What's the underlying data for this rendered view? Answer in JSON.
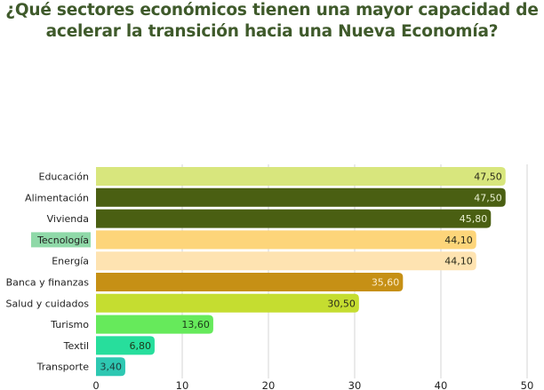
{
  "title_lines": [
    "¿Qué sectores económicos tienen una mayor capacidad de",
    "acelerar la transición hacia una Nueva Economía?"
  ],
  "chart_data": {
    "type": "bar",
    "orientation": "horizontal",
    "title": "¿Qué sectores económicos tienen una mayor capacidad de acelerar la transición hacia una Nueva Economía?",
    "xlabel": "",
    "ylabel": "",
    "xlim": [
      0,
      50
    ],
    "xticks": [
      0,
      10,
      20,
      30,
      40,
      50
    ],
    "grid": true,
    "categories": [
      "Educación",
      "Alimentación",
      "Vivienda",
      "Tecnología",
      "Energía",
      "Banca y finanzas",
      "Salud y cuidados",
      "Turismo",
      "Textil",
      "Transporte"
    ],
    "values": [
      47.5,
      47.5,
      45.8,
      44.1,
      44.1,
      35.6,
      30.5,
      13.6,
      6.8,
      3.4
    ],
    "value_labels": [
      "47,50",
      "47,50",
      "45,80",
      "44,10",
      "44,10",
      "35,60",
      "30,50",
      "13,60",
      "6,80",
      "3,40"
    ],
    "colors": [
      "#d8e67d",
      "#4a5f12",
      "#4a5f12",
      "#fdd57a",
      "#fee3b1",
      "#c69015",
      "#c5dd30",
      "#66ea5b",
      "#27de9c",
      "#2ec8b2"
    ],
    "label_colors": [
      "#2b2b1a",
      "#e8efd0",
      "#e8efd0",
      "#2b2b1a",
      "#2b2b1a",
      "#fbeccb",
      "#2b2b1a",
      "#1d3a1a",
      "#1d3a1a",
      "#1d3a3a"
    ],
    "highlighted_category": "Tecnología",
    "highlight_color": "#8fd9a8",
    "highlight_text_color": "#3b7a4a"
  }
}
